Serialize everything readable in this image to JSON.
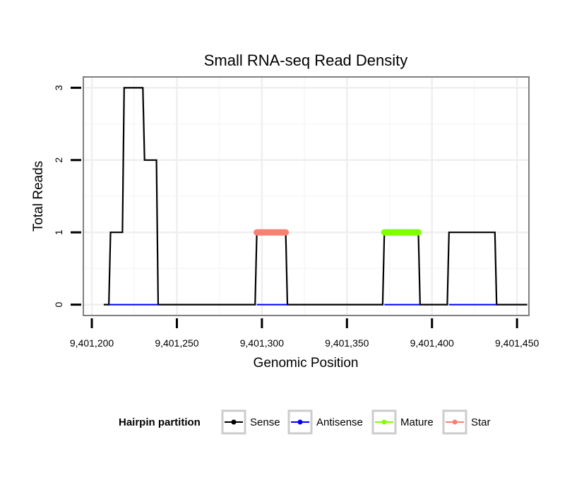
{
  "chart_data": {
    "type": "line",
    "title": "Small RNA-seq Read Density",
    "xlabel": "Genomic Position",
    "ylabel": "Total Reads",
    "xlim": [
      9401195,
      9401457
    ],
    "ylim": [
      -0.15,
      3.15
    ],
    "x_ticks": [
      9401200,
      9401250,
      9401300,
      9401350,
      9401400,
      9401450
    ],
    "x_tick_labels": [
      "9,401,200",
      "9,401,250",
      "9,401,300",
      "9,401,350",
      "9,401,400",
      "9,401,450"
    ],
    "y_ticks": [
      0,
      1,
      2,
      3
    ],
    "y_tick_labels": [
      "0",
      "1",
      "2",
      "3"
    ],
    "grid": true,
    "legend": {
      "title": "Hairpin partition",
      "position": "bottom",
      "entries": [
        "Sense",
        "Antisense",
        "Mature",
        "Star"
      ]
    },
    "series": [
      {
        "name": "Sense",
        "color": "#000000",
        "x": [
          9401207,
          9401210,
          9401211,
          9401218,
          9401219,
          9401230,
          9401231,
          9401238,
          9401239,
          9401296,
          9401297,
          9401314,
          9401315,
          9401371,
          9401372,
          9401392,
          9401393,
          9401409,
          9401410,
          9401437,
          9401438,
          9401456
        ],
        "y": [
          0,
          0,
          1,
          1,
          3,
          3,
          2,
          2,
          0,
          0,
          1,
          1,
          0,
          0,
          1,
          1,
          0,
          0,
          1,
          1,
          0,
          0
        ]
      },
      {
        "name": "Antisense",
        "color": "#0000ff",
        "x": [
          9401210,
          9401239,
          9401297,
          9401315,
          9401372,
          9401393,
          9401410,
          9401438
        ],
        "y": [
          0,
          0,
          0,
          0,
          0,
          0,
          0,
          0
        ],
        "segments": [
          [
            9401210,
            9401239
          ],
          [
            9401297,
            9401315
          ],
          [
            9401372,
            9401393
          ],
          [
            9401410,
            9401438
          ]
        ]
      },
      {
        "name": "Mature",
        "color": "#7fff00",
        "x": [
          9401372,
          9401392
        ],
        "y": [
          1,
          1
        ]
      },
      {
        "name": "Star",
        "color": "#fa8072",
        "x": [
          9401297,
          9401314
        ],
        "y": [
          1,
          1
        ]
      }
    ]
  }
}
